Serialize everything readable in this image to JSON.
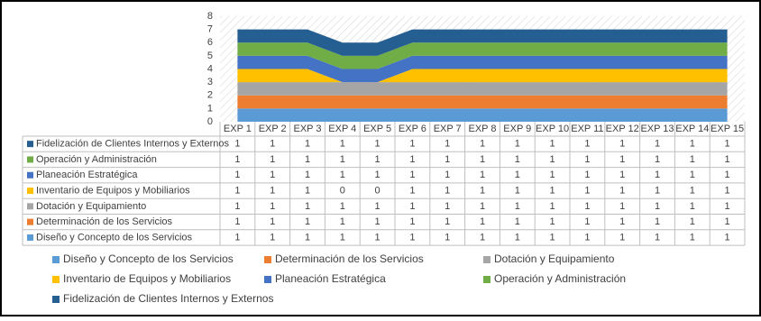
{
  "chart_data": {
    "type": "area",
    "stacked": true,
    "categories": [
      "EXP 1",
      "EXP 2",
      "EXP 3",
      "EXP 4",
      "EXP 5",
      "EXP 6",
      "EXP 7",
      "EXP 8",
      "EXP 9",
      "EXP 10",
      "EXP 11",
      "EXP 12",
      "EXP 13",
      "EXP 14",
      "EXP 15"
    ],
    "series": [
      {
        "name": "Diseño y Concepto de los Servicios",
        "color": "#5b9bd5",
        "values": [
          1,
          1,
          1,
          1,
          1,
          1,
          1,
          1,
          1,
          1,
          1,
          1,
          1,
          1,
          1
        ]
      },
      {
        "name": "Determinación de los Servicios",
        "color": "#ed7d31",
        "values": [
          1,
          1,
          1,
          1,
          1,
          1,
          1,
          1,
          1,
          1,
          1,
          1,
          1,
          1,
          1
        ]
      },
      {
        "name": "Dotación y Equipamiento",
        "color": "#a5a5a5",
        "values": [
          1,
          1,
          1,
          1,
          1,
          1,
          1,
          1,
          1,
          1,
          1,
          1,
          1,
          1,
          1
        ]
      },
      {
        "name": "Inventario de Equipos y Mobiliarios",
        "color": "#ffc000",
        "values": [
          1,
          1,
          1,
          0,
          0,
          1,
          1,
          1,
          1,
          1,
          1,
          1,
          1,
          1,
          1
        ]
      },
      {
        "name": "Planeación Estratégica",
        "color": "#4472c4",
        "values": [
          1,
          1,
          1,
          1,
          1,
          1,
          1,
          1,
          1,
          1,
          1,
          1,
          1,
          1,
          1
        ]
      },
      {
        "name": "Operación y Administración",
        "color": "#70ad47",
        "values": [
          1,
          1,
          1,
          1,
          1,
          1,
          1,
          1,
          1,
          1,
          1,
          1,
          1,
          1,
          1
        ]
      },
      {
        "name": "Fidelización de Clientes Internos y Externos",
        "color": "#255e91",
        "values": [
          1,
          1,
          1,
          1,
          1,
          1,
          1,
          1,
          1,
          1,
          1,
          1,
          1,
          1,
          1
        ]
      }
    ],
    "ylim": [
      0,
      8
    ],
    "yticks": [
      0,
      1,
      2,
      3,
      4,
      5,
      6,
      7,
      8
    ],
    "grid": false,
    "data_table": true,
    "legend": "bottom"
  }
}
